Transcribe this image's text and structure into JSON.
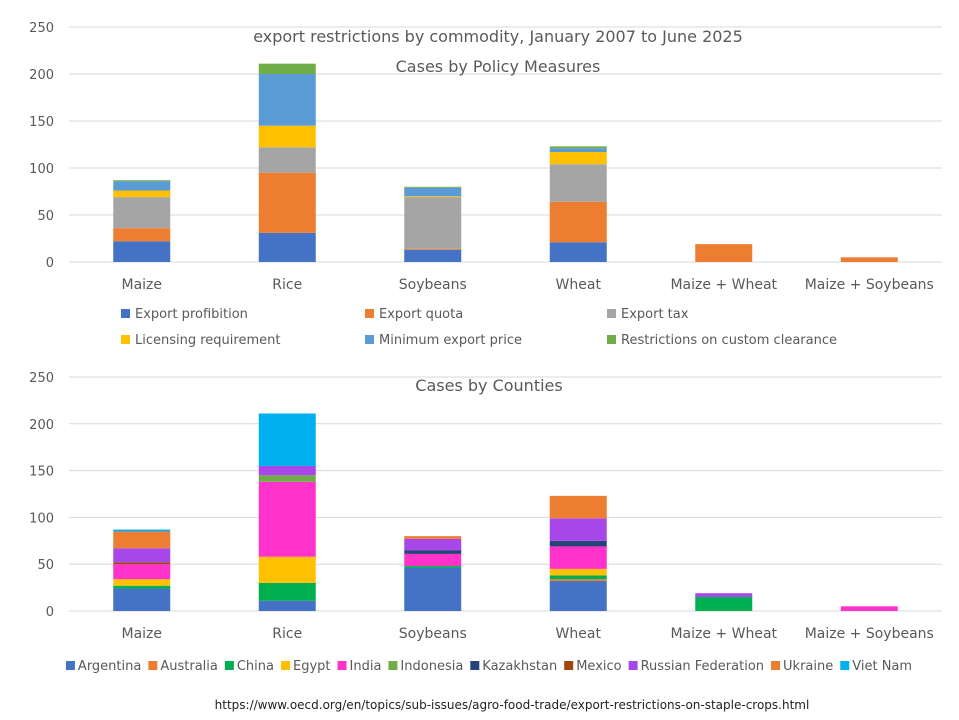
{
  "page_title": "export restrictions by commodity, January 2007 to June 2025",
  "source_url": "https://www.oecd.org/en/topics/sub-issues/agro-food-trade/export-restrictions-on-staple-crops.html",
  "chart_data": [
    {
      "type": "bar",
      "stacked": true,
      "title": "export restrictions by commodity, January 2007 to June 2025",
      "subtitle": "Cases by Policy Measures",
      "xlabel": "",
      "ylabel": "",
      "ylim": [
        0,
        250
      ],
      "yticks": [
        0,
        50,
        100,
        150,
        200,
        250
      ],
      "grid": true,
      "legend_position": "bottom",
      "categories": [
        "Maize",
        "Rice",
        "Soybeans",
        "Wheat",
        "Maize + Wheat",
        "Maize + Soybeans"
      ],
      "series": [
        {
          "name": "Export profibition",
          "color": "#4472C4",
          "values": [
            22,
            31,
            13,
            21,
            0,
            0
          ]
        },
        {
          "name": "Export quota",
          "color": "#ED7D31",
          "values": [
            14,
            64,
            1,
            43,
            19,
            5
          ]
        },
        {
          "name": "Export tax",
          "color": "#A5A5A5",
          "values": [
            33,
            27,
            55,
            40,
            0,
            0
          ]
        },
        {
          "name": "Licensing requirement",
          "color": "#FFC000",
          "values": [
            7,
            23,
            1,
            13,
            0,
            0
          ]
        },
        {
          "name": "Minimum export price",
          "color": "#5B9BD5",
          "values": [
            10,
            55,
            9,
            4,
            0,
            0
          ]
        },
        {
          "name": "Restrictions on custom clearance",
          "color": "#70AD47",
          "values": [
            1,
            11,
            1,
            2,
            0,
            0
          ]
        }
      ]
    },
    {
      "type": "bar",
      "stacked": true,
      "title": "Cases by Counties",
      "xlabel": "",
      "ylabel": "",
      "ylim": [
        0,
        250
      ],
      "yticks": [
        0,
        50,
        100,
        150,
        200,
        250
      ],
      "grid": true,
      "legend_position": "bottom",
      "categories": [
        "Maize",
        "Rice",
        "Soybeans",
        "Wheat",
        "Maize + Wheat",
        "Maize + Soybeans"
      ],
      "series": [
        {
          "name": "Argentina",
          "color": "#4472C4",
          "values": [
            24,
            11,
            46,
            32,
            0,
            0
          ]
        },
        {
          "name": "Australia",
          "color": "#ED7D31",
          "values": [
            0,
            0,
            0,
            2,
            0,
            0
          ]
        },
        {
          "name": "China",
          "color": "#00B050",
          "values": [
            3,
            19,
            2,
            4,
            15,
            0
          ]
        },
        {
          "name": "Egypt",
          "color": "#FFC000",
          "values": [
            7,
            28,
            0,
            7,
            0,
            0
          ]
        },
        {
          "name": "India",
          "color": "#FF33CC",
          "values": [
            16,
            80,
            13,
            24,
            0,
            5
          ]
        },
        {
          "name": "Indonesia",
          "color": "#70AD47",
          "values": [
            0,
            7,
            0,
            0,
            0,
            0
          ]
        },
        {
          "name": "Kazakhstan",
          "color": "#264478",
          "values": [
            0,
            0,
            4,
            6,
            0,
            0
          ]
        },
        {
          "name": "Mexico",
          "color": "#9E480E",
          "values": [
            2,
            0,
            0,
            0,
            0,
            0
          ]
        },
        {
          "name": "Russian Federation",
          "color": "#A747EA",
          "values": [
            15,
            10,
            12,
            24,
            4,
            0
          ]
        },
        {
          "name": "Ukraine",
          "color": "#ED7D31",
          "values": [
            18,
            0,
            3,
            24,
            0,
            0
          ]
        },
        {
          "name": "Viet Nam",
          "color": "#00B0F0",
          "values": [
            2,
            56,
            0,
            0,
            0,
            0
          ]
        }
      ]
    }
  ]
}
